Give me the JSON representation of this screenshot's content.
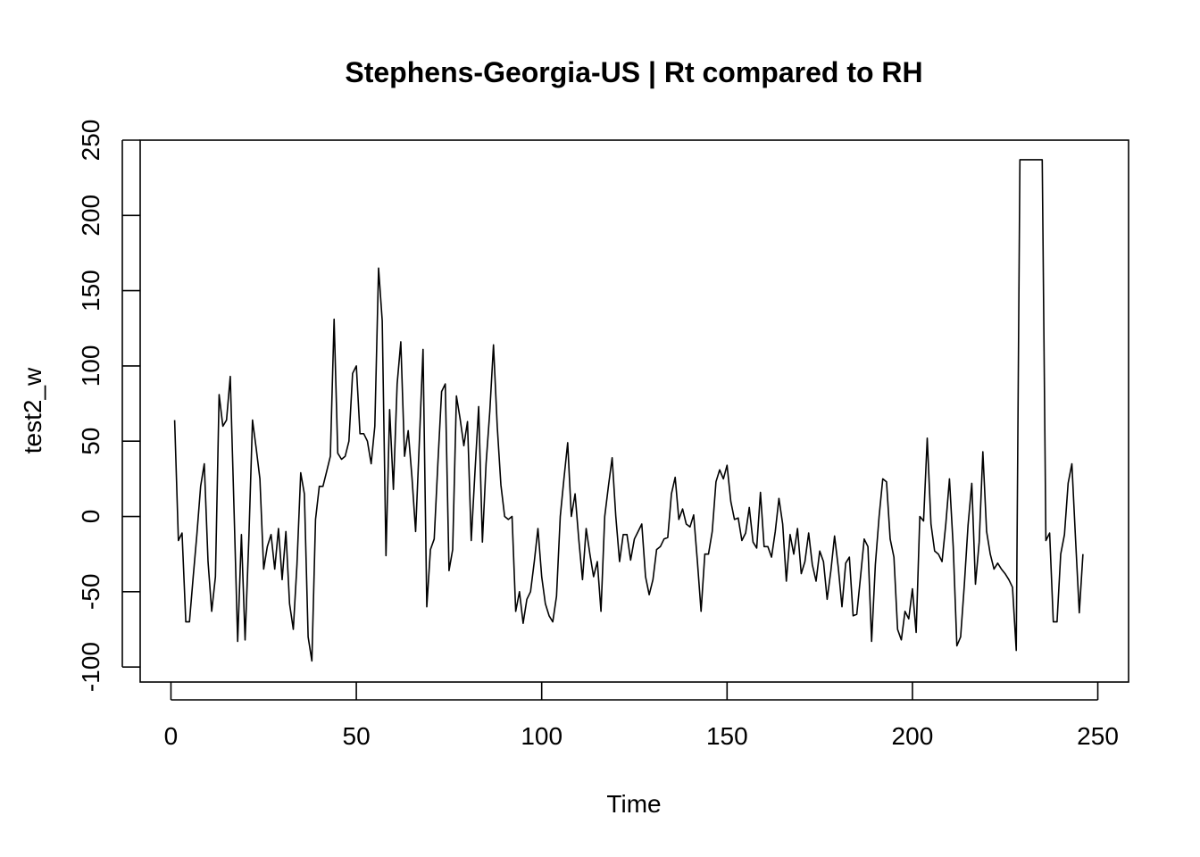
{
  "chart_data": {
    "type": "line",
    "title": "Stephens-Georgia-US | Rt compared to RH",
    "xlabel": "Time",
    "ylabel": "test2_w",
    "xlim": [
      -8.3,
      258.3
    ],
    "ylim": [
      -110,
      250
    ],
    "x_ticks": [
      "0",
      "50",
      "100",
      "150",
      "200",
      "250"
    ],
    "y_ticks": [
      "-100",
      "-50",
      "0",
      "50",
      "100",
      "150",
      "200",
      "250"
    ],
    "x_tick_values": [
      0,
      50,
      100,
      150,
      200,
      250
    ],
    "y_tick_values": [
      -100,
      -50,
      0,
      50,
      100,
      150,
      200,
      250
    ],
    "grid": false,
    "legend": "none",
    "series": [
      {
        "color": "#000000",
        "x_start": 1,
        "values": [
          64,
          -16,
          -11,
          -70,
          -70,
          -40,
          -12,
          20,
          35,
          -30,
          -63,
          -40,
          81,
          60,
          64,
          93,
          5,
          -83,
          -12,
          -82,
          -15,
          64,
          45,
          25,
          -35,
          -20,
          -12,
          -35,
          -8,
          -42,
          -10,
          -58,
          -75,
          -32,
          29,
          15,
          -80,
          -96,
          -2,
          20,
          20,
          30,
          40,
          131,
          42,
          38,
          40,
          50,
          95,
          100,
          55,
          55,
          50,
          35,
          60,
          165,
          130,
          -26,
          71,
          18,
          88,
          116,
          40,
          57,
          26,
          -10,
          50,
          111,
          -60,
          -22,
          -15,
          35,
          83,
          88,
          -36,
          -22,
          80,
          65,
          47,
          63,
          -16,
          30,
          73,
          -17,
          35,
          70,
          114,
          60,
          21,
          0,
          -2,
          0,
          -63,
          -50,
          -71,
          -55,
          -50,
          -30,
          -8,
          -40,
          -58,
          -66,
          -70,
          -53,
          0,
          25,
          49,
          0,
          15,
          -15,
          -42,
          -8,
          -25,
          -40,
          -30,
          -63,
          0,
          20,
          39,
          0,
          -30,
          -12,
          -12,
          -29,
          -15,
          -10,
          -5,
          -40,
          -52,
          -42,
          -22,
          -20,
          -15,
          -14,
          15,
          26,
          -2,
          5,
          -5,
          -7,
          1,
          -30,
          -63,
          -25,
          -25,
          -10,
          23,
          31,
          25,
          34,
          10,
          -2,
          -1,
          -16,
          -11,
          6,
          -17,
          -21,
          16,
          -20,
          -20,
          -27,
          -10,
          12,
          -5,
          -43,
          -12,
          -25,
          -8,
          -38,
          -30,
          -11,
          -32,
          -43,
          -23,
          -30,
          -55,
          -36,
          -13,
          -34,
          -60,
          -31,
          -27,
          -66,
          -65,
          -40,
          -15,
          -20,
          -83,
          -32,
          0,
          25,
          23,
          -15,
          -27,
          -75,
          -82,
          -63,
          -68,
          -48,
          -77,
          0,
          -3,
          52,
          -5,
          -23,
          -25,
          -30,
          -5,
          25,
          -20,
          -86,
          -80,
          -45,
          -6,
          22,
          -45,
          -17,
          43,
          -10,
          -25,
          -35,
          -31,
          -35,
          -38,
          -42,
          -47,
          -89,
          237,
          237,
          237,
          237,
          237,
          237,
          237,
          -16,
          -11,
          -70,
          -70,
          -25,
          -12,
          22,
          35,
          -15,
          -64,
          -25
        ]
      }
    ]
  }
}
